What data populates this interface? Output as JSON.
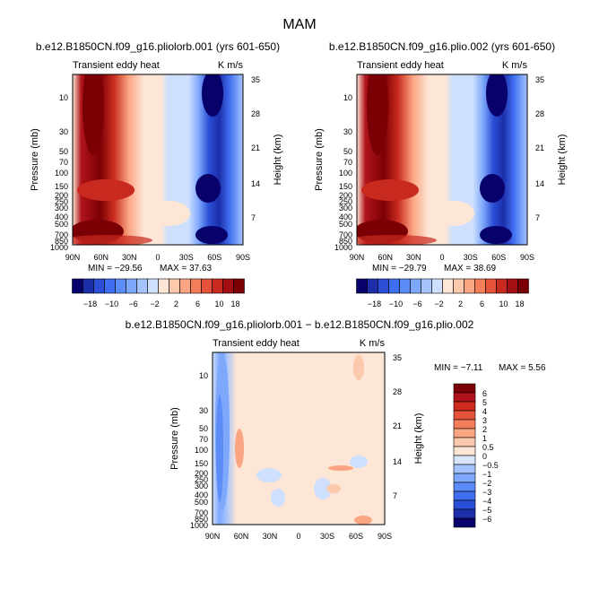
{
  "page_title": "MAM",
  "chart_data": [
    {
      "type": "heatmap",
      "title": "b.e12.B1850CN.f09_g16.pliolorb.001 (yrs 601-650)",
      "subtitle_left": "Transient eddy heat",
      "subtitle_right": "K m/s",
      "ylabel": "Pressure (mb)",
      "ylabel_right": "Height (km)",
      "x_ticks": [
        "90N",
        "60N",
        "30N",
        "0",
        "30S",
        "60S",
        "90S"
      ],
      "y_ticks": [
        "10",
        "30",
        "50",
        "70",
        "100",
        "150",
        "200",
        "250",
        "300",
        "400",
        "500",
        "700",
        "850",
        "1000"
      ],
      "y_right_ticks": [
        "35",
        "28",
        "21",
        "14",
        "7"
      ],
      "min_label": "MIN = −29.56",
      "max_label": "MAX = 37.63",
      "colorbar_ticks": [
        "−18",
        "−10",
        "−6",
        "−2",
        "2",
        "6",
        "10",
        "18"
      ]
    },
    {
      "type": "heatmap",
      "title": "b.e12.B1850CN.f09_g16.plio.002 (yrs 601-650)",
      "subtitle_left": "Transient eddy heat",
      "subtitle_right": "K m/s",
      "ylabel": "Pressure (mb)",
      "ylabel_right": "Height (km)",
      "x_ticks": [
        "90N",
        "60N",
        "30N",
        "0",
        "30S",
        "60S",
        "90S"
      ],
      "y_ticks": [
        "10",
        "30",
        "50",
        "70",
        "100",
        "150",
        "200",
        "250",
        "300",
        "400",
        "500",
        "700",
        "850",
        "1000"
      ],
      "y_right_ticks": [
        "35",
        "28",
        "21",
        "14",
        "7"
      ],
      "min_label": "MIN = −29.79",
      "max_label": "MAX = 38.69",
      "colorbar_ticks": [
        "−18",
        "−10",
        "−6",
        "−2",
        "2",
        "6",
        "10",
        "18"
      ]
    },
    {
      "type": "heatmap",
      "title": "b.e12.B1850CN.f09_g16.pliolorb.001 − b.e12.B1850CN.f09_g16.plio.002",
      "subtitle_left": "Transient eddy heat",
      "subtitle_right": "K m/s",
      "ylabel": "Pressure (mb)",
      "ylabel_right": "Height (km)",
      "x_ticks": [
        "90N",
        "60N",
        "30N",
        "0",
        "30S",
        "60S",
        "90S"
      ],
      "y_ticks": [
        "10",
        "30",
        "50",
        "70",
        "100",
        "150",
        "200",
        "250",
        "300",
        "400",
        "500",
        "700",
        "850",
        "1000"
      ],
      "y_right_ticks": [
        "35",
        "28",
        "21",
        "14",
        "7"
      ],
      "min_label": "MIN = −7.11",
      "max_label": "MAX = 5.56",
      "colorbar_ticks": [
        "6",
        "5",
        "4",
        "3",
        "2",
        "1",
        "0.5",
        "0",
        "−0.5",
        "−1",
        "−2",
        "−3",
        "−4",
        "−5",
        "−6"
      ]
    }
  ],
  "colors": {
    "full_scale": [
      "#08006b",
      "#1c2ea8",
      "#2a4fd6",
      "#3f6ef0",
      "#5b8cf7",
      "#7ea8fb",
      "#a5c4fd",
      "#cfe0fe",
      "#fde6d6",
      "#fcc9ac",
      "#fba583",
      "#f47e5a",
      "#e4533a",
      "#c92a1f",
      "#a30f12",
      "#7b0005"
    ],
    "diff_scale_top_to_bottom": [
      "#7b0005",
      "#b0141a",
      "#cf2a1e",
      "#e4533a",
      "#f47e5a",
      "#fba583",
      "#fcc9ac",
      "#fde6d6",
      "#d7e6fd",
      "#a5c4fd",
      "#7ea8fb",
      "#5b8cf7",
      "#3f6ef0",
      "#2a4fd6",
      "#1c2ea8",
      "#08006b"
    ]
  }
}
